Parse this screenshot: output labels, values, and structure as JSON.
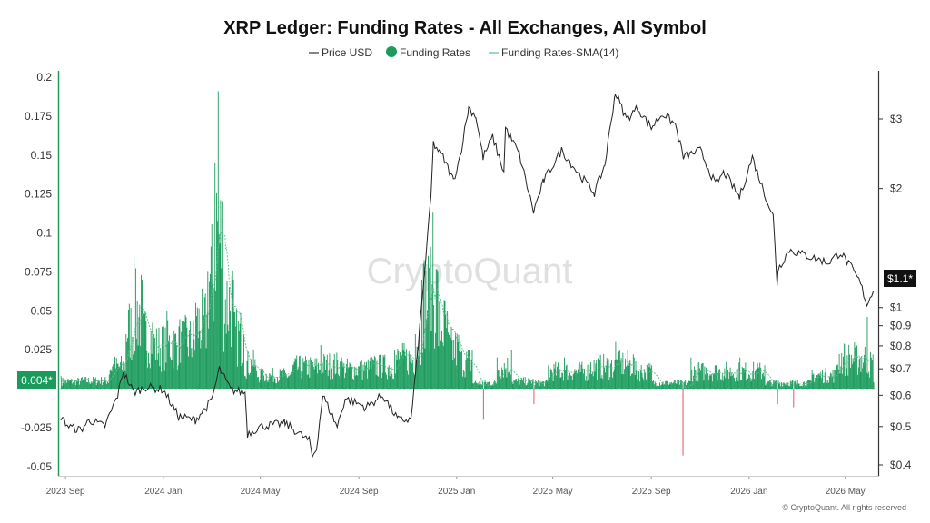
{
  "chart_data": {
    "type": "bar",
    "title": "XRP Ledger: Funding Rates - All Exchanges, All Symbol",
    "legend": {
      "placement": "top-center",
      "entries": [
        {
          "label": "Price USD",
          "color": "#333333",
          "marker": "line"
        },
        {
          "label": "Funding Rates",
          "color": "#1a9b5c",
          "marker": "dot"
        },
        {
          "label": "Funding Rates-SMA(14)",
          "color": "#5cc08a",
          "marker": "line"
        }
      ]
    },
    "left_axis": {
      "ticks": [
        "0.2",
        "0.175",
        "0.15",
        "0.125",
        "0.1",
        "0.075",
        "0.05",
        "0.025",
        "0",
        "-0.025",
        "-0.05"
      ],
      "tick_values": [
        0.2,
        0.175,
        0.15,
        0.125,
        0.1,
        0.075,
        0.05,
        0.025,
        0,
        -0.025,
        -0.05
      ],
      "ylim": [
        -0.055,
        0.2
      ],
      "current_label": "0.004*",
      "current_value": 0.004,
      "color": "#1a9b5c"
    },
    "right_axis": {
      "scale": "log",
      "ticks": [
        "$3",
        "$2",
        "$1",
        "$0.9",
        "$0.8",
        "$0.7",
        "$0.6",
        "$0.5",
        "$0.4"
      ],
      "tick_values": [
        3,
        2,
        1,
        0.9,
        0.8,
        0.7,
        0.6,
        0.5,
        0.4
      ],
      "current_label": "$1.1*",
      "current_value": 1.1
    },
    "x_axis": {
      "ticks": [
        "2023 Sep",
        "2024 Jan",
        "2024 May",
        "2024 Sep",
        "2025 Jan",
        "2025 May",
        "2025 Sep",
        "2026 Jan",
        "2026 May"
      ],
      "tick_dates": [
        "2023-09-01",
        "2024-01-01",
        "2024-05-01",
        "2024-09-01",
        "2025-01-01",
        "2025-05-01",
        "2025-09-01",
        "2026-01-01",
        "2026-05-01"
      ],
      "range": [
        "2023-08-25",
        "2026-06-10"
      ]
    },
    "price_series": {
      "name": "Price USD",
      "points": [
        [
          "2023-08-26",
          0.53
        ],
        [
          "2023-09-05",
          0.5
        ],
        [
          "2023-09-20",
          0.49
        ],
        [
          "2023-10-01",
          0.52
        ],
        [
          "2023-10-20",
          0.5
        ],
        [
          "2023-11-05",
          0.6
        ],
        [
          "2023-11-12",
          0.69
        ],
        [
          "2023-11-25",
          0.61
        ],
        [
          "2023-12-10",
          0.63
        ],
        [
          "2024-01-01",
          0.62
        ],
        [
          "2024-01-20",
          0.53
        ],
        [
          "2024-02-10",
          0.52
        ],
        [
          "2024-03-01",
          0.58
        ],
        [
          "2024-03-11",
          0.7
        ],
        [
          "2024-03-25",
          0.62
        ],
        [
          "2024-04-12",
          0.61
        ],
        [
          "2024-04-15",
          0.48
        ],
        [
          "2024-05-01",
          0.5
        ],
        [
          "2024-06-01",
          0.51
        ],
        [
          "2024-07-01",
          0.46
        ],
        [
          "2024-07-05",
          0.42
        ],
        [
          "2024-07-10",
          0.44
        ],
        [
          "2024-07-18",
          0.6
        ],
        [
          "2024-08-05",
          0.5
        ],
        [
          "2024-08-15",
          0.59
        ],
        [
          "2024-09-10",
          0.56
        ],
        [
          "2024-10-01",
          0.6
        ],
        [
          "2024-10-20",
          0.52
        ],
        [
          "2024-11-05",
          0.52
        ],
        [
          "2024-11-12",
          0.72
        ],
        [
          "2024-11-20",
          1.1
        ],
        [
          "2024-11-30",
          1.9
        ],
        [
          "2024-12-03",
          2.6
        ],
        [
          "2024-12-15",
          2.4
        ],
        [
          "2024-12-28",
          2.1
        ],
        [
          "2025-01-05",
          2.4
        ],
        [
          "2025-01-16",
          3.2
        ],
        [
          "2025-01-25",
          3.05
        ],
        [
          "2025-02-03",
          2.4
        ],
        [
          "2025-02-15",
          2.7
        ],
        [
          "2025-03-01",
          2.2
        ],
        [
          "2025-03-03",
          2.85
        ],
        [
          "2025-03-20",
          2.45
        ],
        [
          "2025-04-07",
          1.75
        ],
        [
          "2025-04-20",
          2.1
        ],
        [
          "2025-05-12",
          2.5
        ],
        [
          "2025-06-01",
          2.2
        ],
        [
          "2025-06-22",
          1.95
        ],
        [
          "2025-07-05",
          2.3
        ],
        [
          "2025-07-18",
          3.5
        ],
        [
          "2025-08-01",
          3.0
        ],
        [
          "2025-08-15",
          3.2
        ],
        [
          "2025-09-01",
          2.85
        ],
        [
          "2025-09-15",
          3.1
        ],
        [
          "2025-10-01",
          2.9
        ],
        [
          "2025-10-11",
          2.4
        ],
        [
          "2025-11-01",
          2.5
        ],
        [
          "2025-11-20",
          2.05
        ],
        [
          "2025-12-01",
          2.2
        ],
        [
          "2025-12-20",
          1.9
        ],
        [
          "2026-01-05",
          2.4
        ],
        [
          "2026-01-20",
          1.95
        ],
        [
          "2026-01-31",
          1.7
        ],
        [
          "2026-02-05",
          1.15
        ],
        [
          "2026-02-06",
          1.25
        ],
        [
          "2026-02-20",
          1.4
        ],
        [
          "2026-03-15",
          1.35
        ],
        [
          "2026-04-10",
          1.3
        ],
        [
          "2026-04-25",
          1.38
        ],
        [
          "2026-05-10",
          1.25
        ],
        [
          "2026-05-20",
          1.15
        ],
        [
          "2026-05-28",
          1.02
        ],
        [
          "2026-06-05",
          1.1
        ]
      ]
    },
    "funding_rates": {
      "name": "Funding Rates",
      "positive_color": "#1a9b5c",
      "negative_color": "#e0474c",
      "peaks": [
        [
          "2023-08-26",
          0.008
        ],
        [
          "2023-09-20",
          0.007
        ],
        [
          "2023-10-25",
          0.009
        ],
        [
          "2023-11-15",
          0.035
        ],
        [
          "2023-11-25",
          0.085
        ],
        [
          "2023-12-05",
          0.07
        ],
        [
          "2023-12-20",
          0.035
        ],
        [
          "2024-01-05",
          0.05
        ],
        [
          "2024-01-20",
          0.04
        ],
        [
          "2024-02-10",
          0.055
        ],
        [
          "2024-02-25",
          0.075
        ],
        [
          "2024-03-05",
          0.145
        ],
        [
          "2024-03-09",
          0.191
        ],
        [
          "2024-03-15",
          0.105
        ],
        [
          "2024-03-28",
          0.07
        ],
        [
          "2024-04-10",
          0.035
        ],
        [
          "2024-04-25",
          0.015
        ],
        [
          "2024-05-15",
          0.012
        ],
        [
          "2024-06-10",
          0.015
        ],
        [
          "2024-07-15",
          0.028
        ],
        [
          "2024-08-10",
          0.02
        ],
        [
          "2024-09-15",
          0.02
        ],
        [
          "2024-10-15",
          0.025
        ],
        [
          "2024-11-10",
          0.035
        ],
        [
          "2024-11-18",
          0.07
        ],
        [
          "2024-12-02",
          0.113
        ],
        [
          "2024-12-08",
          0.075
        ],
        [
          "2024-12-20",
          0.05
        ],
        [
          "2025-01-05",
          0.03
        ],
        [
          "2025-01-20",
          0.025
        ],
        [
          "2025-02-03",
          -0.02
        ],
        [
          "2025-02-20",
          0.02
        ],
        [
          "2025-03-10",
          0.025
        ],
        [
          "2025-04-07",
          -0.01
        ],
        [
          "2025-04-25",
          0.015
        ],
        [
          "2025-05-15",
          0.02
        ],
        [
          "2025-06-15",
          0.015
        ],
        [
          "2025-07-18",
          0.03
        ],
        [
          "2025-08-10",
          0.02
        ],
        [
          "2025-09-01",
          0.015
        ],
        [
          "2025-10-10",
          -0.043
        ],
        [
          "2025-10-20",
          0.02
        ],
        [
          "2025-11-20",
          0.015
        ],
        [
          "2025-12-20",
          0.02
        ],
        [
          "2026-01-20",
          0.015
        ],
        [
          "2026-02-05",
          -0.01
        ],
        [
          "2026-02-25",
          -0.012
        ],
        [
          "2026-03-20",
          0.012
        ],
        [
          "2026-04-20",
          0.015
        ],
        [
          "2026-05-28",
          0.046
        ],
        [
          "2026-06-05",
          0.004
        ]
      ]
    },
    "sma_color": "#5cc08a",
    "watermark": "CryptoQuant",
    "copyright": "© CryptoQuant. All rights reserved"
  }
}
